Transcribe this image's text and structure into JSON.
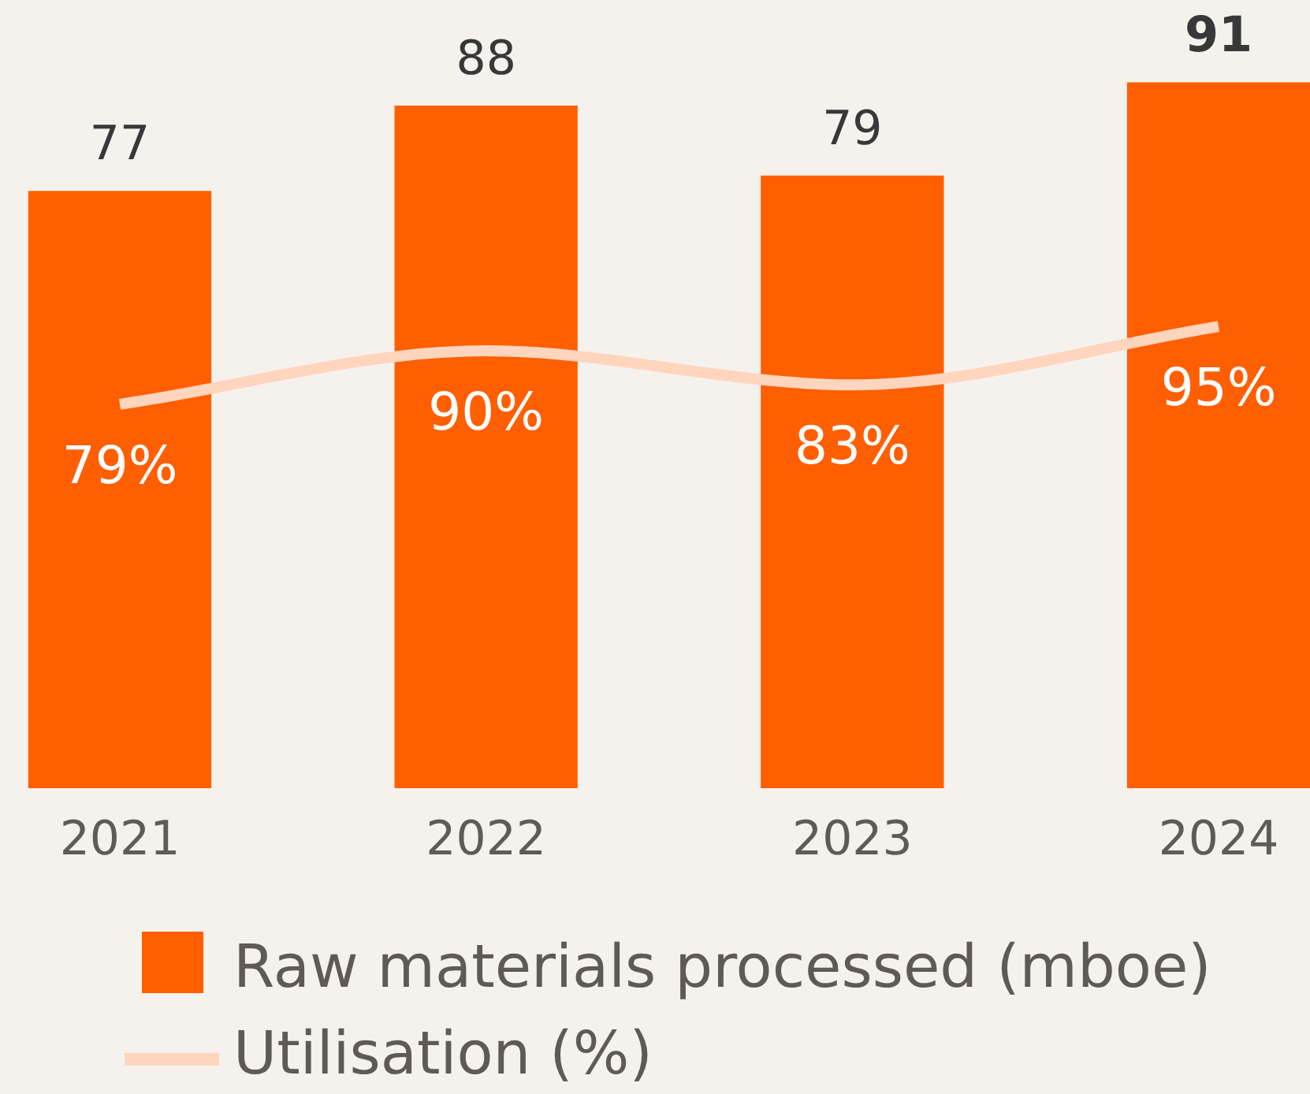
{
  "chart_data": {
    "type": "bar",
    "categories": [
      "2021",
      "2022",
      "2023",
      "2024"
    ],
    "series": [
      {
        "name": "Raw materials processed (mboe)",
        "color": "#ff5f00",
        "values": [
          77,
          88,
          79,
          91
        ],
        "value_labels": [
          "77",
          "88",
          "79",
          "91"
        ]
      },
      {
        "name": "Utilisation (%)",
        "type": "line",
        "axis": "y2",
        "color": "#ffd5be",
        "values": [
          79,
          90,
          83,
          95
        ],
        "value_labels": [
          "79%",
          "90%",
          "83%",
          "95%"
        ]
      }
    ],
    "tick_labels": "x",
    "legend": "bottom",
    "marker": "none"
  }
}
